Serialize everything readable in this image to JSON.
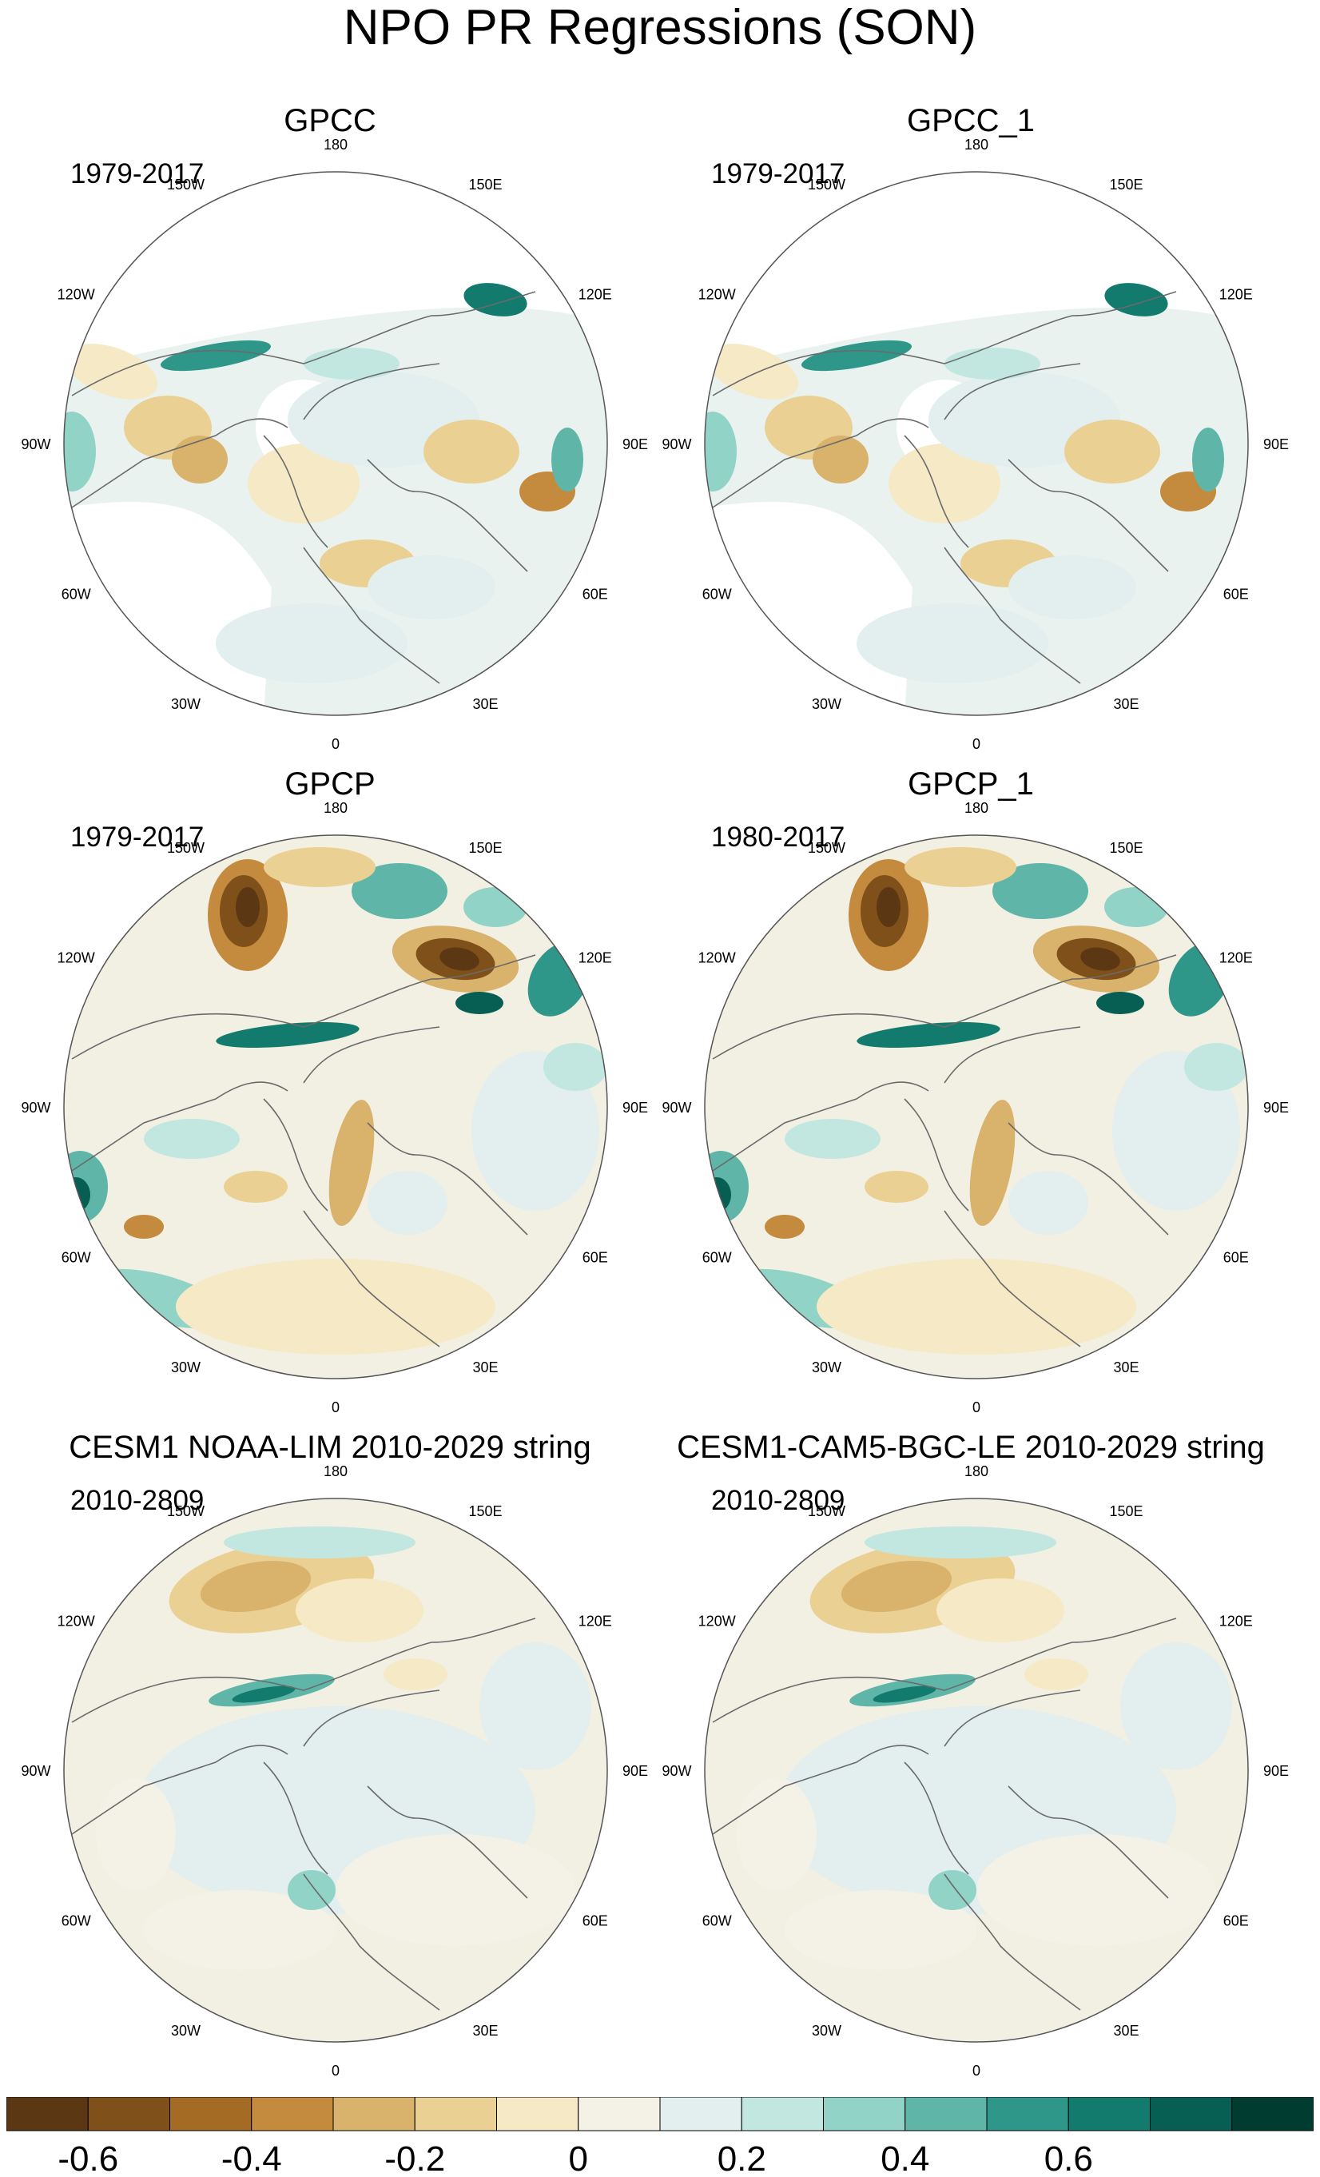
{
  "title": "NPO PR Regressions (SON)",
  "lon_labels": [
    "180",
    "150E",
    "120E",
    "90E",
    "60E",
    "30E",
    "0",
    "30W",
    "60W",
    "90W",
    "120W",
    "150W"
  ],
  "panels": [
    {
      "title": "GPCC",
      "period": "1979-2017",
      "pattern": "gpcc"
    },
    {
      "title": "GPCC_1",
      "period": "1979-2017",
      "pattern": "gpcc"
    },
    {
      "title": "GPCP",
      "period": "1979-2017",
      "pattern": "gpcp"
    },
    {
      "title": "GPCP_1",
      "period": "1980-2017",
      "pattern": "gpcp"
    },
    {
      "title": "CESM1 NOAA-LIM 2010-2029 string",
      "period": "2010-2809",
      "pattern": "cesm"
    },
    {
      "title": "CESM1-CAM5-BGC-LE 2010-2029 string",
      "period": "2010-2809",
      "pattern": "cesm"
    }
  ],
  "colorbar": {
    "colors": [
      "#5c3714",
      "#80501a",
      "#a46b24",
      "#c48a3e",
      "#d9b26b",
      "#ead193",
      "#f6e9c6",
      "#f4f1e6",
      "#e2efee",
      "#c1e7e0",
      "#92d3c8",
      "#5fb6a8",
      "#2f968a",
      "#127b6e",
      "#075f53",
      "#003c30"
    ],
    "tick_labels": [
      "-0.6",
      "-0.4",
      "-0.2",
      "0",
      "0.2",
      "0.4",
      "0.6"
    ],
    "tick_boundary_index": [
      1,
      3,
      5,
      7,
      9,
      11,
      13
    ]
  }
}
